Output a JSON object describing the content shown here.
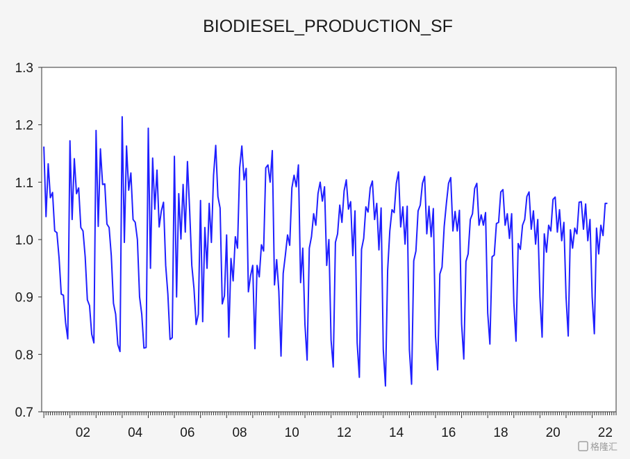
{
  "chart_data": {
    "type": "line",
    "title": "BIODIESEL_PRODUCTION_SF",
    "xlabel": "",
    "ylabel": "",
    "x_tick_labels": [
      "02",
      "04",
      "06",
      "08",
      "10",
      "12",
      "14",
      "16",
      "18",
      "20",
      "22"
    ],
    "x_tick_years": [
      2002,
      2004,
      2006,
      2008,
      2010,
      2012,
      2014,
      2016,
      2018,
      2020,
      2022
    ],
    "y_ticks": [
      0.7,
      0.8,
      0.9,
      1.0,
      1.1,
      1.2,
      1.3
    ],
    "y_tick_labels": [
      "0.7",
      "0.8",
      "0.9",
      "1.0",
      "1.1",
      "1.2",
      "1.3"
    ],
    "xlim": [
      2000.917,
      2022.917
    ],
    "ylim": [
      0.7,
      1.3
    ],
    "grid": false,
    "x_start_year": 2001,
    "x_start_month": 1,
    "series": [
      {
        "color": "#1f1fff",
        "values": [
          1.162,
          1.04,
          1.132,
          1.073,
          1.082,
          1.015,
          1.012,
          0.968,
          0.905,
          0.903,
          0.855,
          0.827,
          1.172,
          1.035,
          1.141,
          1.08,
          1.09,
          1.021,
          1.015,
          0.97,
          0.895,
          0.885,
          0.835,
          0.82,
          1.19,
          1.023,
          1.158,
          1.096,
          1.097,
          1.027,
          1.021,
          0.972,
          0.889,
          0.87,
          0.817,
          0.805,
          1.214,
          0.995,
          1.163,
          1.086,
          1.116,
          1.035,
          1.03,
          1.0,
          0.9,
          0.87,
          0.811,
          0.812,
          1.194,
          0.95,
          1.142,
          1.053,
          1.121,
          1.022,
          1.05,
          1.065,
          0.955,
          0.905,
          0.826,
          0.829,
          1.145,
          0.9,
          1.08,
          1.001,
          1.096,
          1.013,
          1.136,
          1.052,
          0.955,
          0.915,
          0.852,
          0.87,
          1.068,
          0.857,
          1.021,
          0.95,
          1.063,
          0.995,
          1.112,
          1.164,
          1.075,
          1.055,
          0.888,
          0.902,
          1.008,
          0.83,
          0.967,
          0.928,
          1.005,
          0.985,
          1.125,
          1.163,
          1.104,
          1.124,
          0.909,
          0.937,
          0.955,
          0.81,
          0.955,
          0.935,
          0.991,
          0.98,
          1.125,
          1.13,
          1.1,
          1.155,
          0.921,
          0.965,
          0.91,
          0.797,
          0.941,
          0.973,
          1.008,
          0.99,
          1.09,
          1.112,
          1.092,
          1.13,
          0.925,
          0.985,
          0.852,
          0.79,
          0.985,
          1.005,
          1.045,
          1.025,
          1.08,
          1.1,
          1.067,
          1.092,
          0.955,
          1.0,
          0.825,
          0.778,
          0.995,
          1.01,
          1.06,
          1.03,
          1.085,
          1.104,
          1.053,
          1.066,
          0.972,
          1.05,
          0.82,
          0.76,
          0.983,
          1.002,
          1.057,
          1.048,
          1.09,
          1.102,
          1.035,
          1.063,
          0.982,
          1.055,
          0.808,
          0.745,
          0.946,
          1.015,
          1.052,
          1.047,
          1.098,
          1.118,
          1.022,
          1.057,
          0.992,
          1.058,
          0.808,
          0.748,
          0.963,
          0.98,
          1.05,
          1.06,
          1.098,
          1.11,
          1.01,
          1.058,
          1.005,
          1.054,
          0.832,
          0.773,
          0.94,
          0.952,
          1.023,
          1.063,
          1.098,
          1.108,
          1.015,
          1.049,
          1.015,
          1.051,
          0.853,
          0.792,
          0.962,
          0.975,
          1.035,
          1.045,
          1.089,
          1.098,
          1.025,
          1.043,
          1.025,
          1.047,
          0.872,
          0.818,
          0.97,
          0.973,
          1.028,
          1.03,
          1.083,
          1.087,
          1.025,
          1.045,
          1.002,
          1.045,
          0.89,
          0.823,
          0.993,
          0.983,
          1.025,
          1.035,
          1.075,
          1.083,
          1.018,
          1.05,
          0.992,
          1.035,
          0.9,
          0.83,
          1.01,
          0.978,
          1.025,
          1.015,
          1.07,
          1.074,
          1.013,
          1.052,
          0.998,
          1.03,
          0.9,
          0.832,
          1.017,
          0.985,
          1.02,
          1.01,
          1.065,
          1.066,
          1.018,
          1.062,
          0.998,
          1.035,
          0.9,
          0.836,
          1.02,
          0.975,
          1.025,
          1.007,
          1.063,
          1.063
        ]
      }
    ]
  },
  "watermark": {
    "text": "格隆汇"
  }
}
